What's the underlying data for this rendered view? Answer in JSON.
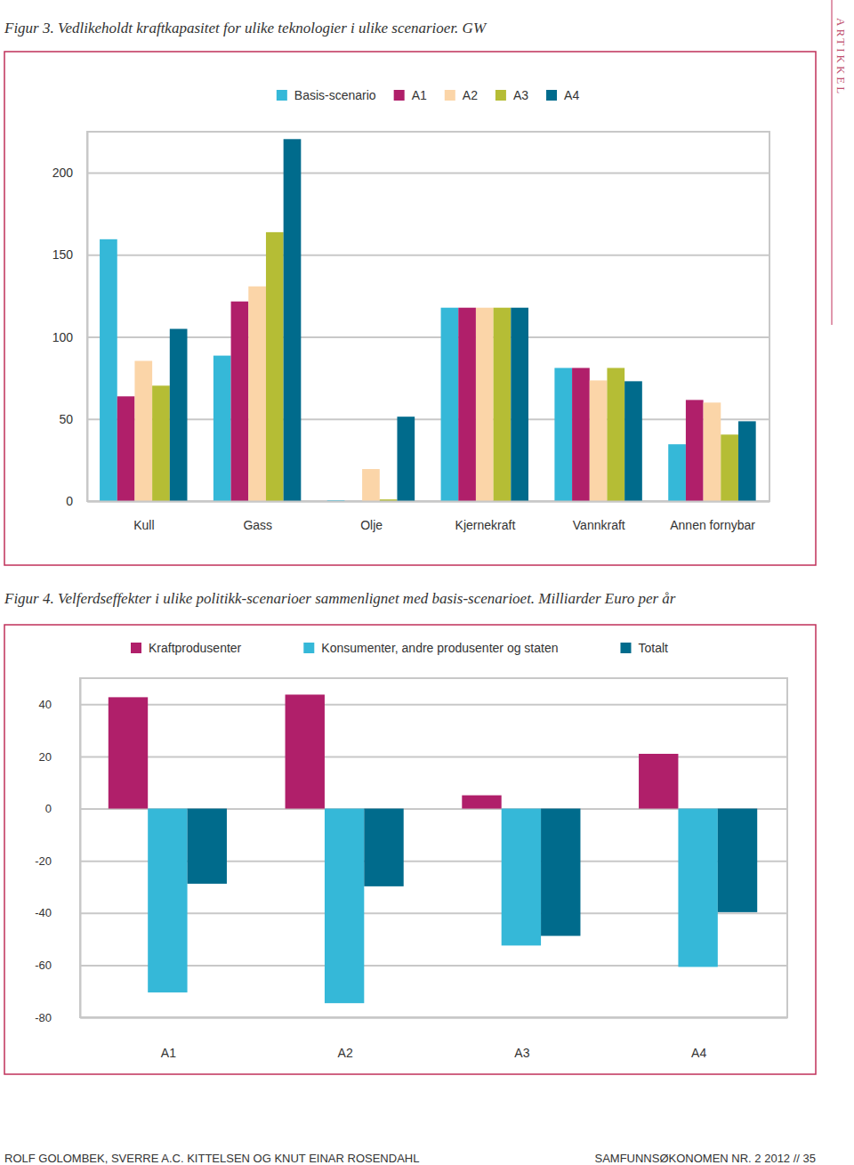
{
  "page": {
    "label": "ARTIKKEL",
    "footer_left": "ROLF GOLOMBEK, SVERRE A.C. KITTELSEN OG KNUT EINAR ROSENDAHL",
    "footer_right": "SAMFUNNSØKONOMEN NR. 2 2012 // 35"
  },
  "chart_data": [
    {
      "type": "bar",
      "title": "Figur 3. Vedlikeholdt kraftkapasitet for ulike teknologier i ulike scenarioer. GW",
      "categories": [
        "Kull",
        "Gass",
        "Olje",
        "Kjernekraft",
        "Vannkraft",
        "Annen fornybar"
      ],
      "series": [
        {
          "name": "Basis-scenario",
          "color": "#35b8d8",
          "values": [
            159.5,
            88.6,
            0.5,
            117.8,
            81.1,
            34.6
          ]
        },
        {
          "name": "A1",
          "color": "#b01f6a",
          "values": [
            63.8,
            121.6,
            0,
            117.8,
            81.1,
            61.6
          ]
        },
        {
          "name": "A2",
          "color": "#fbd5a8",
          "values": [
            85.4,
            130.8,
            19.5,
            117.8,
            73.5,
            60.0
          ]
        },
        {
          "name": "A3",
          "color": "#b5bd35",
          "values": [
            70.3,
            163.8,
            1,
            117.8,
            81.1,
            40.5
          ]
        },
        {
          "name": "A4",
          "color": "#006b8c",
          "values": [
            104.9,
            220.5,
            51.4,
            117.8,
            73.0,
            48.6
          ]
        }
      ],
      "ylim": [
        0,
        225
      ],
      "yticks": [
        0,
        50,
        100,
        150,
        200
      ],
      "grid": true,
      "legend": "top"
    },
    {
      "type": "bar",
      "title": "Figur 4. Velferdseffekter i ulike politikk-scenarioer sammenlignet med basis-scenarioet. Milliarder Euro per år",
      "categories": [
        "A1",
        "A2",
        "A3",
        "A4"
      ],
      "series": [
        {
          "name": "Kraftprodusenter",
          "color": "#b01f6a",
          "values": [
            42.7,
            43.7,
            5.1,
            21.0
          ]
        },
        {
          "name": "Konsumenter, andre produsenter og staten",
          "color": "#35b8d8",
          "values": [
            -70.5,
            -74.6,
            -52.5,
            -60.7
          ]
        },
        {
          "name": "Totalt",
          "color": "#006b8c",
          "values": [
            -28.8,
            -29.8,
            -48.8,
            -39.7
          ]
        }
      ],
      "ylim": [
        -80,
        50
      ],
      "yticks": [
        -80,
        -60,
        -40,
        -20,
        0,
        20,
        40
      ],
      "grid": true,
      "legend": "top"
    }
  ]
}
